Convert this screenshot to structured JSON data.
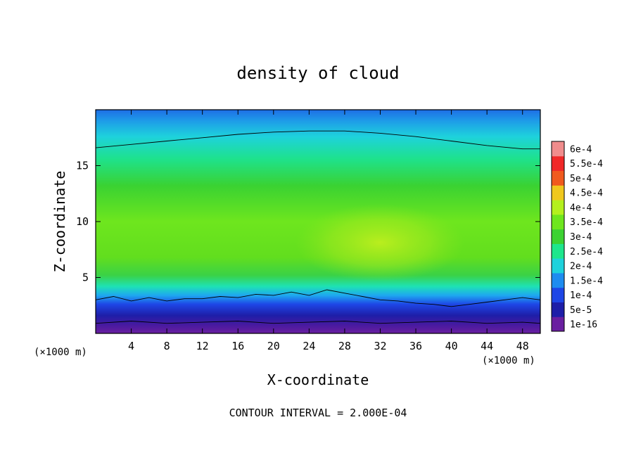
{
  "chart_data": {
    "type": "heatmap",
    "title": "density of cloud",
    "xlabel": "X-coordinate",
    "ylabel": "Z-coordinate",
    "x_unit_left": "(×1000 m)",
    "x_unit_right": "(×1000 m)",
    "xlim": [
      0,
      50
    ],
    "ylim": [
      0,
      20
    ],
    "x_ticks": [
      4,
      8,
      12,
      16,
      20,
      24,
      28,
      32,
      36,
      40,
      44,
      48
    ],
    "y_ticks": [
      5,
      10,
      15
    ],
    "footer": "CONTOUR INTERVAL = 2.000E-04",
    "colorbar": {
      "labels": [
        "1e-16",
        "5e-5",
        "1e-4",
        "1.5e-4",
        "2e-4",
        "2.5e-4",
        "3e-4",
        "3.5e-4",
        "4e-4",
        "4.5e-4",
        "5e-4",
        "5.5e-4",
        "6e-4"
      ],
      "colors": [
        "#6a1fa0",
        "#1e1ea8",
        "#1e46e6",
        "#1e8cf0",
        "#1ed2dc",
        "#1ee68c",
        "#3cd232",
        "#6ee61e",
        "#b4f01e",
        "#f0c81e",
        "#f05a1e",
        "#f02828",
        "#f08c8c"
      ]
    },
    "contours": [
      {
        "level": "2e-4",
        "x": [
          0,
          4,
          8,
          12,
          16,
          20,
          24,
          28,
          32,
          36,
          40,
          44,
          48,
          50
        ],
        "z": [
          16.6,
          16.9,
          17.2,
          17.5,
          17.8,
          18.0,
          18.1,
          18.1,
          17.9,
          17.6,
          17.2,
          16.8,
          16.5,
          16.5
        ]
      },
      {
        "level": "2e-4",
        "x": [
          0,
          2,
          4,
          6,
          8,
          10,
          12,
          14,
          16,
          18,
          20,
          22,
          24,
          26,
          28,
          30,
          32,
          34,
          36,
          38,
          40,
          42,
          44,
          46,
          48,
          50
        ],
        "z": [
          3.0,
          3.3,
          2.9,
          3.2,
          2.9,
          3.1,
          3.1,
          3.3,
          3.2,
          3.5,
          3.4,
          3.7,
          3.4,
          3.9,
          3.6,
          3.3,
          3.0,
          2.9,
          2.7,
          2.6,
          2.4,
          2.6,
          2.8,
          3.0,
          3.2,
          3.0
        ]
      },
      {
        "level": "1e-4",
        "x": [
          0,
          4,
          8,
          12,
          16,
          20,
          24,
          28,
          32,
          36,
          40,
          44,
          48,
          50
        ],
        "z": [
          0.9,
          1.1,
          0.9,
          1.0,
          1.1,
          0.9,
          1.0,
          1.1,
          0.9,
          1.0,
          1.1,
          0.9,
          1.0,
          0.9
        ]
      }
    ]
  }
}
